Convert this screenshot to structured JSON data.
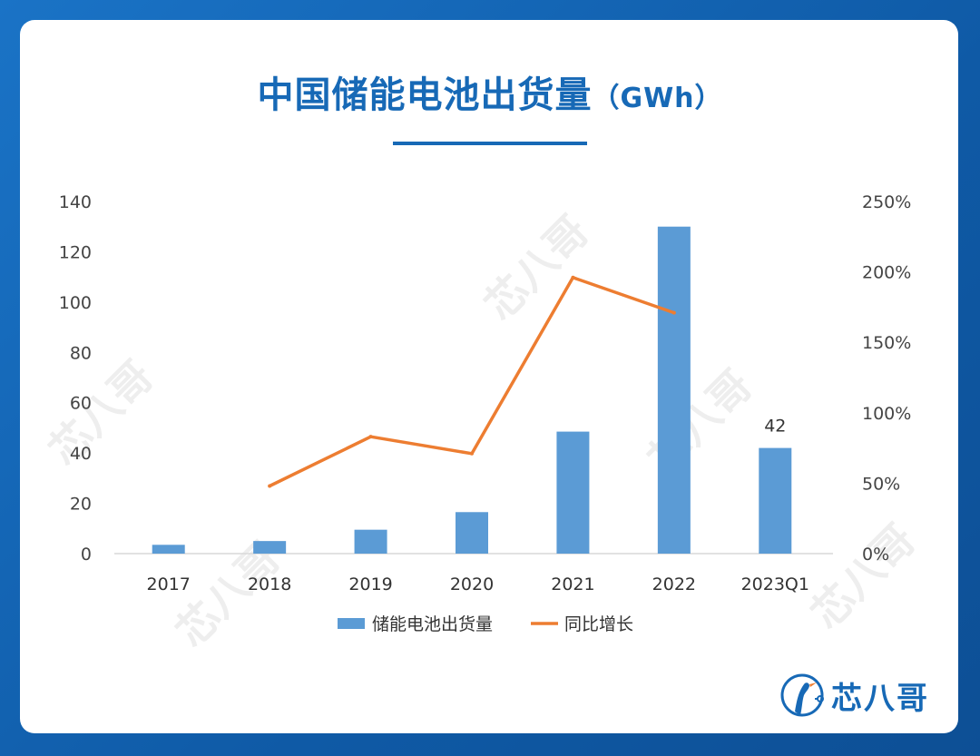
{
  "title": "中国储能电池出货量",
  "title_unit": "（GWh）",
  "brand": {
    "name": "芯八哥",
    "accent": "#1769b6"
  },
  "watermark_text": "芯八哥",
  "chart_data": {
    "type": "bar",
    "title": "中国储能电池出货量（GWh）",
    "categories": [
      "2017",
      "2018",
      "2019",
      "2020",
      "2021",
      "2022",
      "2023Q1"
    ],
    "series": [
      {
        "name": "储能电池出货量",
        "type": "bar",
        "axis": "left",
        "color": "#5b9bd5",
        "values": [
          3.5,
          5,
          9.5,
          16.5,
          48.5,
          130,
          42
        ]
      },
      {
        "name": "同比增长",
        "type": "line",
        "axis": "right",
        "color": "#ed7d31",
        "values": [
          null,
          0.48,
          0.83,
          0.71,
          1.96,
          1.71,
          null
        ]
      }
    ],
    "data_labels": [
      {
        "category": "2023Q1",
        "text": "42"
      }
    ],
    "y_left": {
      "ticks": [
        "0",
        "20",
        "40",
        "60",
        "80",
        "100",
        "120",
        "140"
      ],
      "min": 0,
      "max": 140
    },
    "y_right": {
      "ticks": [
        "0%",
        "50%",
        "100%",
        "150%",
        "200%",
        "250%"
      ],
      "min": 0,
      "max": 2.5
    },
    "legend_position": "bottom",
    "grid": false
  }
}
